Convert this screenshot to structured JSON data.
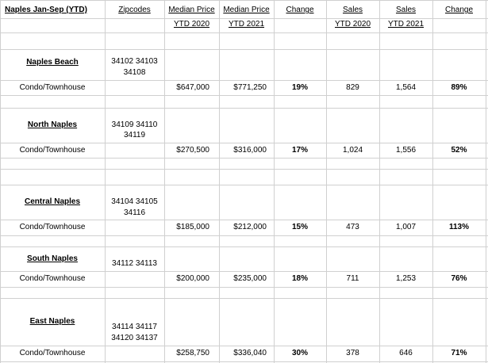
{
  "header": {
    "title": "Naples  Jan-Sep (YTD)",
    "zipcodes": "Zipcodes",
    "median_2020_a": "Median Price",
    "median_2020_b": "YTD 2020",
    "median_2021_a": "Median Price",
    "median_2021_b": "YTD 2021",
    "change_price": "Change",
    "sales_2020_a": "Sales",
    "sales_2020_b": "YTD 2020",
    "sales_2021_a": "Sales",
    "sales_2021_b": "YTD 2021",
    "change_sales": "Change"
  },
  "regions": [
    {
      "name": "Naples Beach",
      "zip1": "34102  34103",
      "zip2": "34108",
      "type": "Condo/Townhouse",
      "median_2020": "$647,000",
      "median_2021": "$771,250",
      "price_change": "19%",
      "sales_2020": "829",
      "sales_2021": "1,564",
      "sales_change": "89%"
    },
    {
      "name": "North Naples",
      "zip1": "34109  34110",
      "zip2": "34119",
      "type": "Condo/Townhouse",
      "median_2020": "$270,500",
      "median_2021": "$316,000",
      "price_change": "17%",
      "sales_2020": "1,024",
      "sales_2021": "1,556",
      "sales_change": "52%"
    },
    {
      "name": "Central Naples",
      "zip1": "34104  34105",
      "zip2": "34116",
      "type": "Condo/Townhouse",
      "median_2020": "$185,000",
      "median_2021": "$212,000",
      "price_change": "15%",
      "sales_2020": "473",
      "sales_2021": "1,007",
      "sales_change": "113%"
    },
    {
      "name": "South Naples",
      "zip1": "34112  34113",
      "zip2": "",
      "type": "Condo/Townhouse",
      "median_2020": "$200,000",
      "median_2021": "$235,000",
      "price_change": "18%",
      "sales_2020": "711",
      "sales_2021": "1,253",
      "sales_change": "76%"
    },
    {
      "name": "East Naples",
      "zip1": "34114  34117",
      "zip2": "34120  34137",
      "type": "Condo/Townhouse",
      "median_2020": "$258,750",
      "median_2021": "$336,040",
      "price_change": "30%",
      "sales_2020": "378",
      "sales_2021": "646",
      "sales_change": "71%"
    }
  ]
}
